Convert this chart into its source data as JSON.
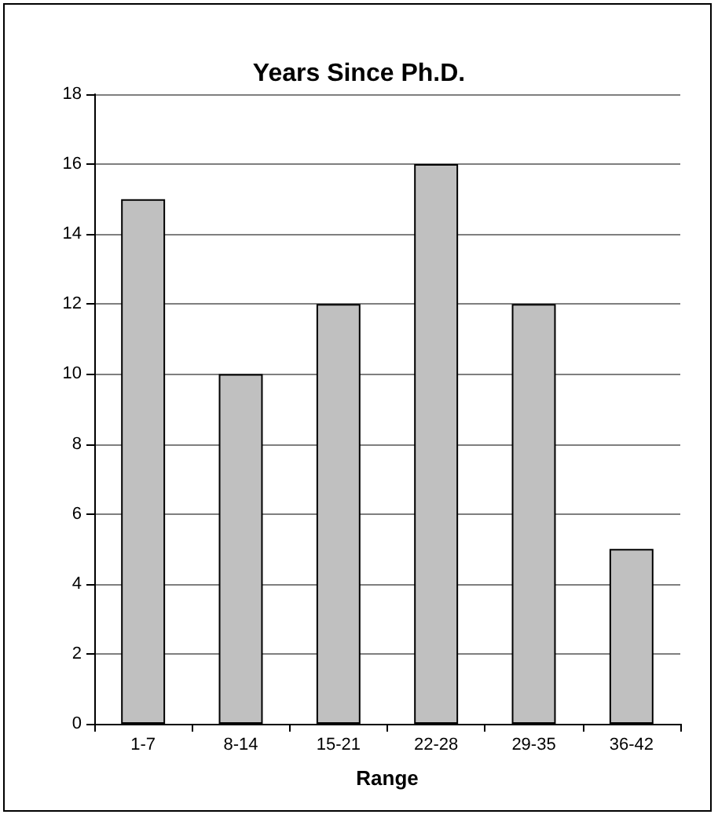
{
  "chart_data": {
    "type": "bar",
    "title": "Years Since Ph.D.",
    "xlabel": "Range",
    "categories": [
      "1-7",
      "8-14",
      "15-21",
      "22-28",
      "29-35",
      "36-42"
    ],
    "values": [
      15,
      10,
      12,
      16,
      12,
      5
    ],
    "color": "#c0c0c0",
    "ylim": [
      0,
      18
    ],
    "yticks": [
      0,
      2,
      4,
      6,
      8,
      10,
      12,
      14,
      16,
      18
    ],
    "grid": "y"
  }
}
